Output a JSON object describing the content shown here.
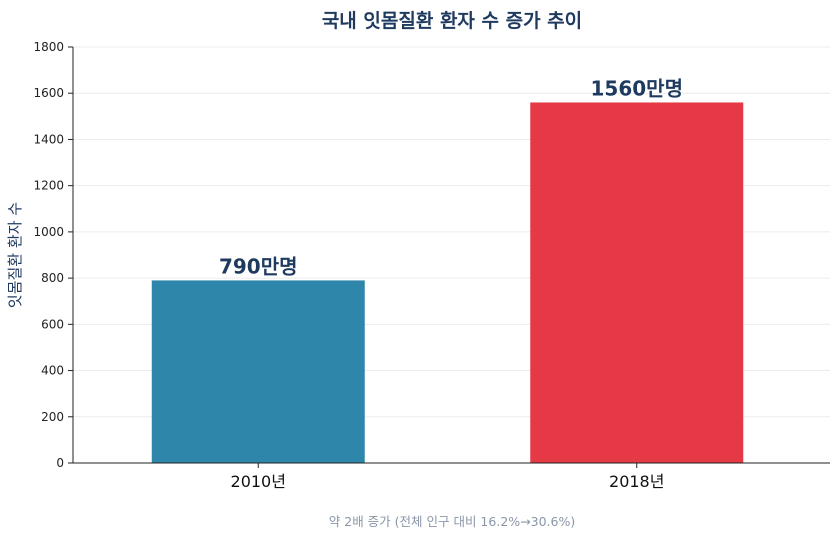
{
  "chart_data": {
    "type": "bar",
    "title": "국내 잇몸질환 환자 수 증가 추이",
    "xlabel": "",
    "ylabel": "잇몸질환 환자 수",
    "categories": [
      "2010년",
      "2018년"
    ],
    "values": [
      790,
      1560
    ],
    "data_labels": [
      "790만명",
      "1560만명"
    ],
    "colors": [
      "#2e86ab",
      "#e63946"
    ],
    "ylim": [
      0,
      1800
    ],
    "yticks": [
      0,
      200,
      400,
      600,
      800,
      1000,
      1200,
      1400,
      1600,
      1800
    ],
    "grid": true,
    "legend": "none",
    "footnote": "약 2배 증가 (전체 인구 대비 16.2%→30.6%)"
  }
}
